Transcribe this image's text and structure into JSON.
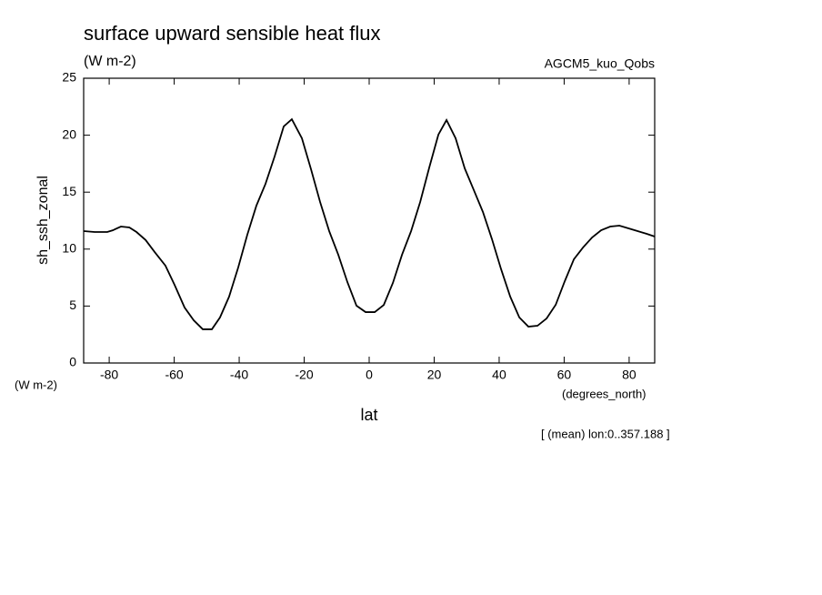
{
  "chart_data": {
    "type": "line",
    "title": "surface upward sensible heat flux",
    "units": "(W m-2)",
    "experiment": "AGCM5_kuo_Qobs",
    "y_label": "sh_ssh_zonal",
    "y_units": "(W m-2)",
    "x_label": "lat",
    "x_units": "(degrees_north)",
    "note": "[ (mean) lon:0..357.188 ]",
    "color": "#000000",
    "x": [
      -87.86,
      -84.5,
      -80.6,
      -78.9,
      -76.4,
      -73.8,
      -71.6,
      -68.8,
      -66.0,
      -62.7,
      -59.9,
      -56.8,
      -54.0,
      -51.2,
      -48.4,
      -45.9,
      -43.1,
      -40.3,
      -37.5,
      -34.7,
      -31.9,
      -29.1,
      -26.3,
      -23.8,
      -20.7,
      -17.9,
      -15.1,
      -12.3,
      -9.5,
      -6.7,
      -3.9,
      -1.1,
      1.7,
      4.5,
      7.3,
      10.1,
      12.9,
      15.7,
      18.5,
      21.3,
      23.8,
      26.6,
      29.4,
      32.2,
      35.0,
      37.8,
      40.6,
      43.4,
      46.2,
      49.0,
      51.8,
      54.6,
      57.4,
      60.2,
      63.0,
      65.8,
      68.6,
      71.4,
      74.2,
      77.0,
      79.8,
      82.6,
      85.4,
      87.86
    ],
    "values": [
      11.58,
      11.5,
      11.5,
      11.65,
      11.98,
      11.9,
      11.5,
      10.8,
      9.74,
      8.55,
      6.87,
      4.87,
      3.75,
      2.96,
      2.96,
      4.0,
      5.83,
      8.39,
      11.26,
      13.82,
      15.73,
      18.13,
      20.77,
      21.4,
      19.73,
      17.01,
      14.14,
      11.58,
      9.5,
      7.1,
      5.03,
      4.47,
      4.47,
      5.1,
      7.03,
      9.5,
      11.58,
      14.14,
      17.17,
      20.05,
      21.33,
      19.73,
      17.09,
      15.18,
      13.26,
      10.86,
      8.23,
      5.83,
      4.0,
      3.19,
      3.27,
      3.91,
      5.11,
      7.19,
      9.11,
      10.14,
      11.02,
      11.66,
      11.98,
      12.06,
      11.82,
      11.58,
      11.34,
      11.1
    ],
    "xlim": [
      -87.86,
      87.86
    ],
    "xticks": [
      -80,
      -60,
      -40,
      -20,
      0,
      20,
      40,
      60,
      80
    ],
    "ylim": [
      0,
      25
    ],
    "yticks": [
      0,
      5,
      10,
      15,
      20,
      25
    ]
  }
}
